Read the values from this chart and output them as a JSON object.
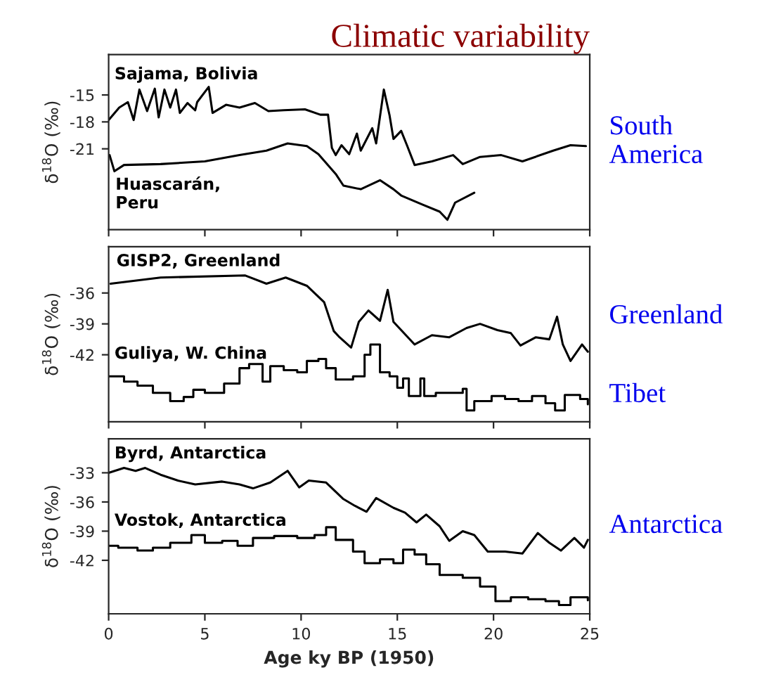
{
  "chart_data": [
    {
      "type": "line",
      "title": "Climatic variability",
      "ylabel": "δ$^{18}$O (‰)",
      "xlim": [
        0,
        25
      ],
      "xticks": [
        0,
        5,
        10,
        15,
        20,
        25
      ],
      "ylim": [
        -30,
        -10.5
      ],
      "yticks": [
        -15,
        -18,
        -21
      ],
      "tick_labels": "y",
      "annotations": [
        "South\nAmerica"
      ],
      "series": [
        {
          "name": "Sajama, Bolivia",
          "color": "#000000",
          "x": [
            0,
            0.55,
            1.0,
            1.3,
            1.6,
            2.0,
            2.4,
            2.6,
            2.9,
            3.2,
            3.5,
            3.7,
            4.1,
            4.5,
            4.6,
            5.2,
            5.4,
            6.1,
            6.8,
            7.6,
            8.3,
            9.1,
            10.2,
            11.0,
            11.4,
            11.6,
            11.8,
            12.1,
            12.5,
            12.9,
            13.1,
            13.7,
            13.9,
            14.3,
            14.6,
            14.8,
            15.2,
            15.5,
            15.9,
            16.8,
            17.9,
            18.4,
            19.3,
            20.4,
            21.5,
            23.1,
            24.0,
            24.8
          ],
          "values": [
            -17.8,
            -16.4,
            -15.8,
            -17.8,
            -14.4,
            -16.8,
            -14.3,
            -17.5,
            -14.4,
            -16.4,
            -14.4,
            -17.0,
            -15.9,
            -16.7,
            -15.8,
            -14.1,
            -17.0,
            -16.1,
            -16.4,
            -15.9,
            -16.8,
            -16.7,
            -16.6,
            -17.2,
            -17.2,
            -20.9,
            -21.7,
            -20.6,
            -21.6,
            -19.3,
            -21.2,
            -18.7,
            -20.4,
            -14.4,
            -17.3,
            -19.9,
            -19.0,
            -20.6,
            -22.8,
            -22.4,
            -21.7,
            -22.7,
            -21.9,
            -21.7,
            -22.4,
            -21.2,
            -20.6,
            -20.7
          ]
        },
        {
          "name": "Huascarán,\nPeru",
          "color": "#000000",
          "x": [
            0.05,
            0.3,
            0.8,
            2.7,
            5.0,
            6.8,
            8.2,
            9.3,
            10.3,
            10.9,
            11.8,
            12.2,
            13.1,
            14.1,
            14.8,
            15.2,
            16.3,
            17.2,
            17.6,
            18.0,
            19.0
          ],
          "values": [
            -21.7,
            -23.5,
            -22.8,
            -22.7,
            -22.4,
            -21.7,
            -21.2,
            -20.4,
            -20.7,
            -21.6,
            -23.8,
            -25.1,
            -25.5,
            -24.5,
            -25.5,
            -26.2,
            -27.2,
            -28.0,
            -28.9,
            -27.0,
            -25.9
          ]
        }
      ]
    },
    {
      "type": "line",
      "ylabel": "δ$^{18}$O (‰)",
      "xlim": [
        0,
        25
      ],
      "xticks": [
        0,
        5,
        10,
        15,
        20,
        25
      ],
      "ylim": [
        -48.5,
        -31.5
      ],
      "yticks": [
        -36,
        -39,
        -42
      ],
      "tick_labels": "y",
      "annotations": [
        "Greenland",
        "Tibet"
      ],
      "series": [
        {
          "name": "GISP2, Greenland",
          "color": "#000000",
          "x": [
            0.1,
            2.7,
            7.1,
            8.2,
            9.2,
            10.3,
            11.2,
            11.7,
            12.0,
            12.6,
            13.0,
            13.5,
            14.1,
            14.5,
            14.8,
            15.9,
            16.8,
            17.7,
            18.6,
            19.3,
            20.2,
            20.9,
            21.4,
            22.2,
            22.9,
            23.3,
            23.6,
            24.0,
            24.6,
            24.9
          ],
          "values": [
            -35.1,
            -34.5,
            -34.3,
            -35.1,
            -34.5,
            -35.3,
            -36.9,
            -39.7,
            -40.3,
            -41.3,
            -38.8,
            -37.7,
            -38.7,
            -35.7,
            -38.8,
            -41.0,
            -40.1,
            -40.3,
            -39.4,
            -39.0,
            -39.6,
            -39.9,
            -41.1,
            -40.3,
            -40.5,
            -38.3,
            -41.0,
            -42.6,
            -41.0,
            -41.7
          ]
        },
        {
          "name": "Guliya, W. China",
          "type": "step",
          "color": "#000000",
          "x": [
            0,
            0.8,
            1.5,
            2.3,
            3.2,
            3.9,
            4.4,
            5.0,
            6.0,
            6.8,
            7.3,
            8.0,
            8.4,
            9.1,
            9.8,
            10.3,
            10.9,
            11.3,
            11.8,
            12.7,
            13.3,
            13.6,
            14.1,
            14.6,
            15.0,
            15.3,
            15.6,
            16.2,
            16.4,
            17.0,
            18.4,
            18.6,
            19.0,
            19.6,
            19.9,
            20.6,
            21.3,
            22.0,
            22.7,
            23.2,
            23.7,
            24.5,
            24.9
          ],
          "values": [
            -44.1,
            -44.6,
            -45.0,
            -45.7,
            -46.5,
            -46.1,
            -45.4,
            -45.7,
            -44.8,
            -43.3,
            -42.9,
            -44.6,
            -43.1,
            -43.5,
            -43.7,
            -42.6,
            -42.4,
            -43.3,
            -44.4,
            -44.1,
            -42.0,
            -41.0,
            -43.7,
            -44.1,
            -45.2,
            -44.3,
            -46.0,
            -44.3,
            -46.0,
            -45.7,
            -45.3,
            -47.4,
            -46.5,
            -46.5,
            -46.0,
            -46.3,
            -46.5,
            -46.0,
            -46.7,
            -47.4,
            -45.9,
            -46.3,
            -46.8
          ]
        }
      ]
    },
    {
      "type": "line",
      "ylabel": "δ$^{18}$O (‰)",
      "xlabel": "Age ky BP (1950)",
      "xlim": [
        0,
        25
      ],
      "xticks": [
        0,
        5,
        10,
        15,
        20,
        25
      ],
      "ylim": [
        -47.5,
        -29.5
      ],
      "yticks": [
        -33,
        -36,
        -39,
        -42
      ],
      "annotations": [
        "Antarctica"
      ],
      "series": [
        {
          "name": "Byrd, Antarctica",
          "color": "#000000",
          "x": [
            0,
            0.8,
            1.4,
            1.9,
            2.7,
            3.6,
            4.5,
            5.9,
            6.8,
            7.5,
            8.4,
            9.3,
            9.9,
            10.4,
            11.3,
            12.2,
            12.8,
            13.4,
            13.9,
            14.8,
            15.4,
            16.0,
            16.5,
            17.2,
            17.7,
            18.4,
            19.0,
            19.7,
            20.6,
            21.5,
            22.3,
            22.9,
            23.5,
            24.2,
            24.7,
            24.9
          ],
          "values": [
            -33.0,
            -32.5,
            -32.8,
            -32.5,
            -33.2,
            -33.8,
            -34.2,
            -33.9,
            -34.2,
            -34.6,
            -34.0,
            -32.8,
            -34.5,
            -33.8,
            -34.0,
            -35.7,
            -36.4,
            -37.0,
            -35.6,
            -36.6,
            -37.1,
            -38.1,
            -37.3,
            -38.5,
            -40.0,
            -39.0,
            -39.4,
            -41.1,
            -41.1,
            -41.3,
            -39.2,
            -40.2,
            -41.0,
            -39.7,
            -40.7,
            -39.9
          ]
        },
        {
          "name": "Vostok, Antarctica",
          "type": "step",
          "color": "#000000",
          "x": [
            0,
            0.5,
            1.5,
            2.3,
            3.2,
            4.3,
            5.0,
            5.9,
            6.7,
            7.5,
            8.6,
            9.8,
            10.7,
            11.3,
            11.8,
            12.7,
            13.3,
            14.1,
            14.8,
            15.3,
            15.9,
            16.5,
            17.2,
            18.4,
            19.3,
            20.1,
            20.9,
            21.8,
            22.7,
            23.4,
            24.0,
            24.9
          ],
          "values": [
            -40.5,
            -40.7,
            -41.0,
            -40.7,
            -40.2,
            -39.4,
            -40.2,
            -40.0,
            -40.5,
            -39.7,
            -39.5,
            -39.7,
            -39.4,
            -38.6,
            -39.9,
            -41.1,
            -42.3,
            -41.9,
            -42.3,
            -40.9,
            -41.4,
            -42.4,
            -43.5,
            -43.8,
            -44.7,
            -46.2,
            -45.8,
            -46.0,
            -46.2,
            -46.6,
            -45.8,
            -46.1
          ]
        }
      ]
    }
  ]
}
